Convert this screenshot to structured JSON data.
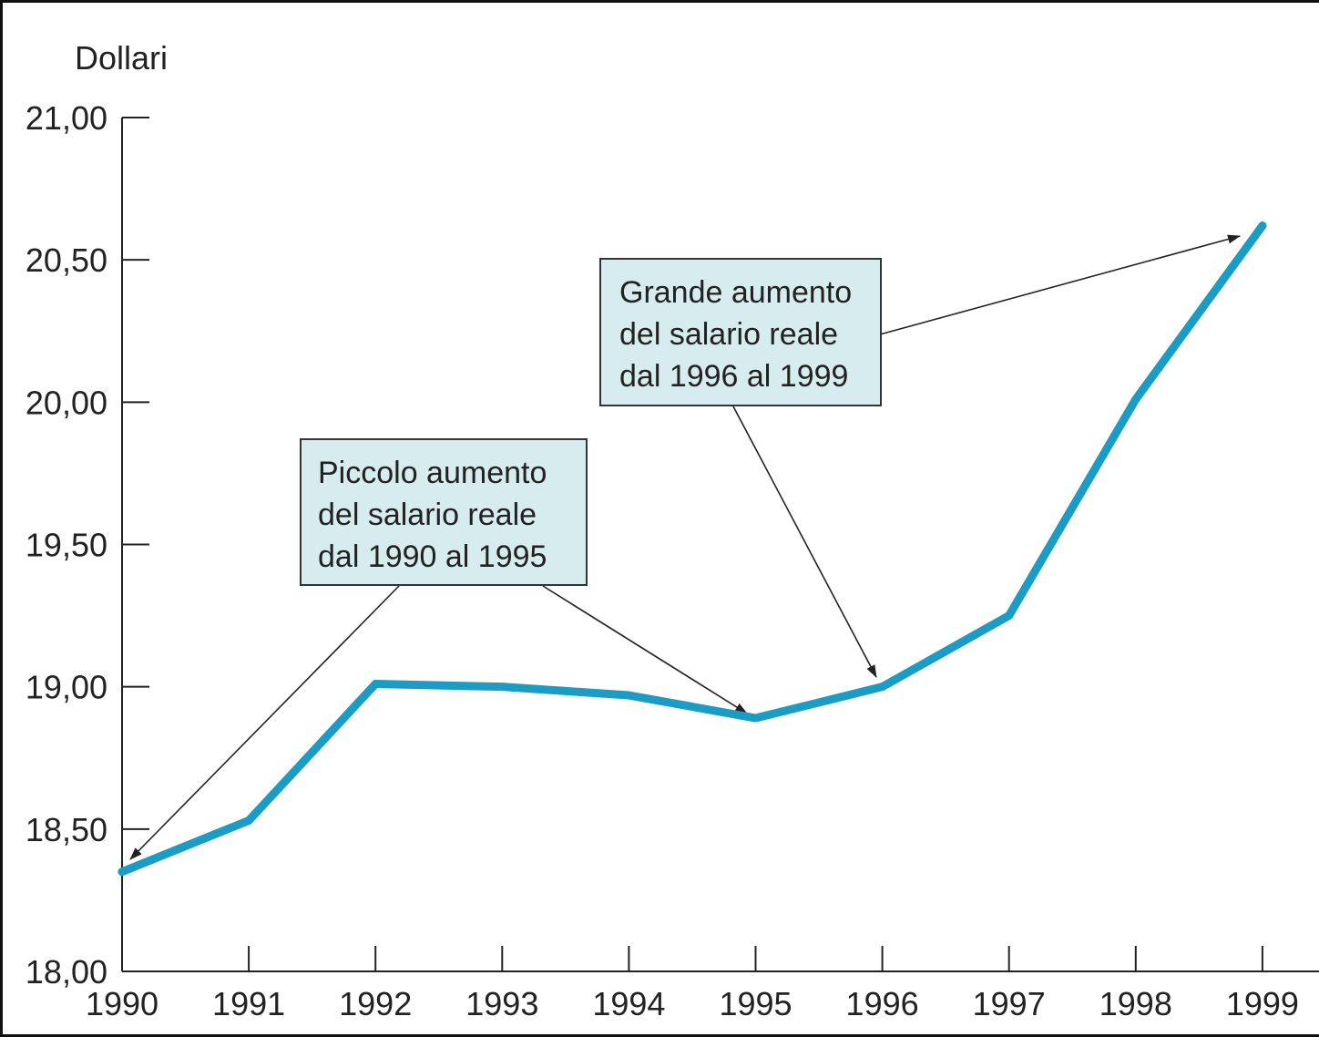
{
  "chart_data": {
    "type": "line",
    "ylabel": "Dollari",
    "xlabel": "",
    "title": "",
    "x": [
      "1990",
      "1991",
      "1992",
      "1993",
      "1994",
      "1995",
      "1996",
      "1997",
      "1998",
      "1999"
    ],
    "y_tick_labels": [
      "18,00",
      "18,50",
      "19,00",
      "19,50",
      "20,00",
      "20,50",
      "21,00"
    ],
    "y_ticks": [
      18.0,
      18.5,
      19.0,
      19.5,
      20.0,
      20.5,
      21.0
    ],
    "ylim": [
      18.0,
      21.0
    ],
    "grid": false,
    "series": [
      {
        "values": [
          18.35,
          18.53,
          19.01,
          19.0,
          18.97,
          18.89,
          19.0,
          19.25,
          20.01,
          20.62
        ],
        "color": "#1a9cc4"
      }
    ],
    "annotations": [
      {
        "lines": [
          "Piccolo aumento",
          "del salario reale",
          "dal 1990 al 1995"
        ],
        "targets": [
          {
            "x": "1990",
            "y": 18.35
          },
          {
            "x": "1995",
            "y": 18.89
          }
        ]
      },
      {
        "lines": [
          "Grande aumento",
          "del salario reale",
          "dal 1996 al 1999"
        ],
        "targets": [
          {
            "x": "1996",
            "y": 19.0
          },
          {
            "x": "1999",
            "y": 20.62
          }
        ]
      }
    ],
    "annotation_box_color": "#d7ecef"
  }
}
